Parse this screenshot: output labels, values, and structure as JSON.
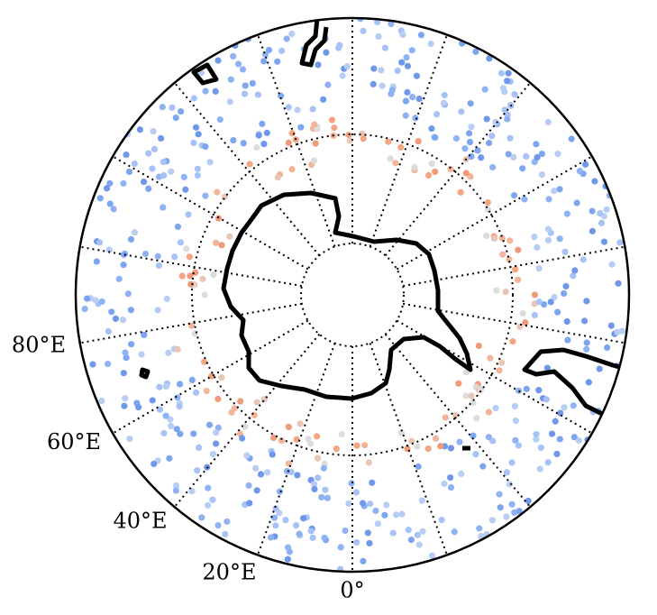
{
  "meridian_labels": [
    {
      "lon": 80,
      "label": "80°E"
    },
    {
      "lon": 60,
      "label": "60°E"
    },
    {
      "lon": 40,
      "label": "40°E"
    },
    {
      "lon": 20,
      "label": "20°E"
    },
    {
      "lon": 0,
      "label": "0°"
    }
  ]
}
